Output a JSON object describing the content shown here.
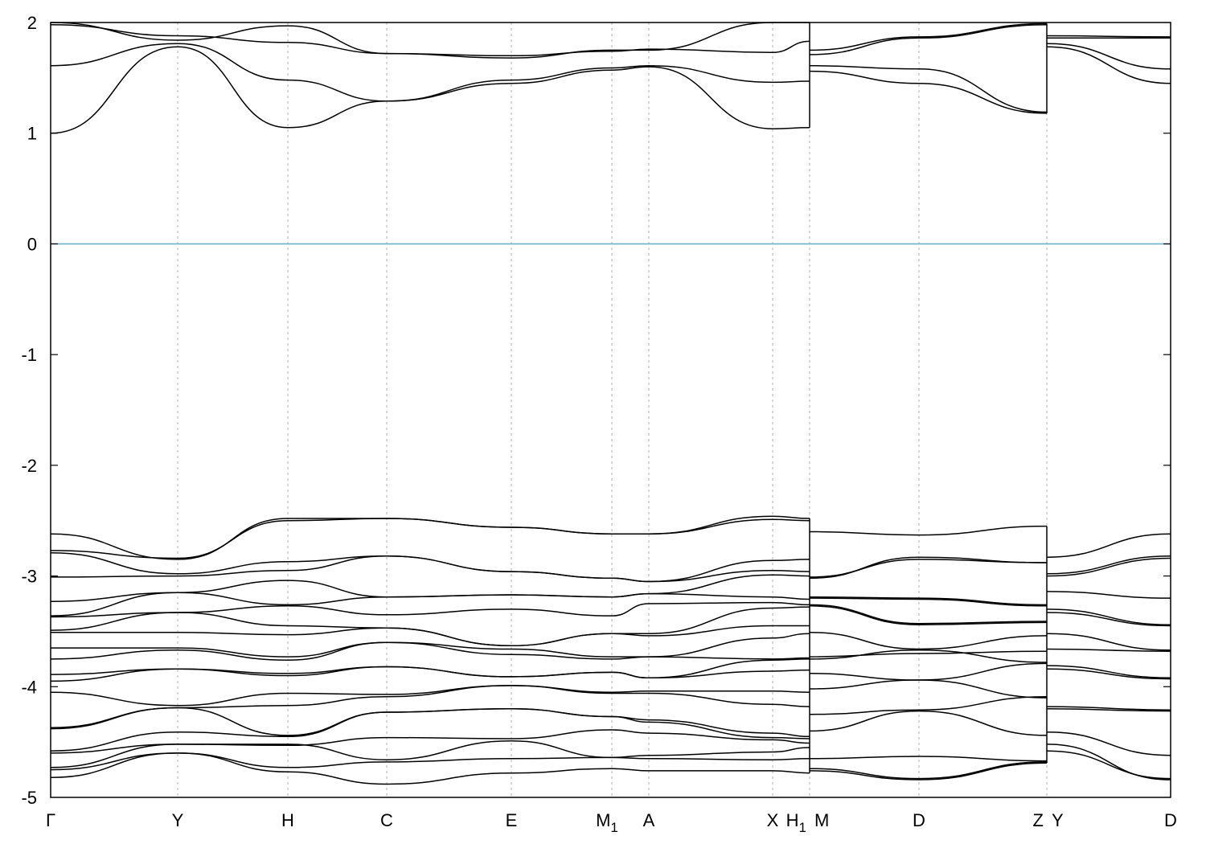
{
  "chart_data": {
    "type": "line",
    "title": "",
    "xlabel": "",
    "ylabel": "",
    "ylim": [
      -5,
      2
    ],
    "yticks": [
      {
        "value": 2,
        "label": "2"
      },
      {
        "value": 1,
        "label": "1"
      },
      {
        "value": 0,
        "label": "0"
      },
      {
        "value": -1,
        "label": "-1"
      },
      {
        "value": -2,
        "label": "-2"
      },
      {
        "value": -3,
        "label": "-3"
      },
      {
        "value": -4,
        "label": "-4"
      },
      {
        "value": -5,
        "label": "-5"
      }
    ],
    "kpoints": [
      {
        "label": "Γ",
        "sub": "",
        "x": 0
      },
      {
        "label": "Y",
        "sub": "",
        "x": 158
      },
      {
        "label": "H",
        "sub": "",
        "x": 295
      },
      {
        "label": "C",
        "sub": "",
        "x": 418
      },
      {
        "label": "E",
        "sub": "",
        "x": 573
      },
      {
        "label": "M",
        "sub": "1",
        "x": 698
      },
      {
        "label": "A",
        "sub": "",
        "x": 744
      },
      {
        "label": "X",
        "sub": "",
        "x": 898
      },
      {
        "label": "H",
        "sub": "1",
        "x": 944
      },
      {
        "label": "M",
        "sub": "",
        "x": 944
      },
      {
        "label": "D",
        "sub": "",
        "x": 1080
      },
      {
        "label": "Z",
        "sub": "",
        "x": 1239
      },
      {
        "label": "Y",
        "sub": "",
        "x": 1239
      },
      {
        "label": "D",
        "sub": "",
        "x": 1393
      }
    ],
    "xlim": [
      0,
      1393
    ],
    "fermi_level": 0,
    "fermi_color": "#6ab4c8",
    "band_color": "#000000",
    "segments": [
      {
        "kx": [
          0,
          158,
          295,
          418,
          573,
          698,
          744,
          898,
          944
        ],
        "bands": [
          [
            1.0,
            1.78,
            1.05,
            1.29,
            1.45,
            1.57,
            1.6,
            1.04,
            1.05
          ],
          [
            1.61,
            1.81,
            1.48,
            1.29,
            1.48,
            1.59,
            1.61,
            1.46,
            1.47
          ],
          [
            1.98,
            1.88,
            1.82,
            1.72,
            1.7,
            1.74,
            1.76,
            1.73,
            1.83
          ],
          [
            2.0,
            1.84,
            1.97,
            1.72,
            1.68,
            1.75,
            1.75,
            2.0,
            2.0
          ],
          [
            -2.62,
            -2.85,
            -2.48,
            -2.48,
            -2.56,
            -2.62,
            -2.62,
            -2.46,
            -2.48
          ],
          [
            -2.77,
            -2.84,
            -2.5,
            -2.48,
            -2.56,
            -2.62,
            -2.62,
            -2.49,
            -2.5
          ],
          [
            -2.79,
            -2.98,
            -2.87,
            -2.82,
            -2.96,
            -3.02,
            -3.05,
            -2.86,
            -2.85
          ],
          [
            -3.01,
            -3.0,
            -2.95,
            -2.82,
            -2.96,
            -3.02,
            -3.05,
            -2.95,
            -2.96
          ],
          [
            -3.23,
            -3.15,
            -3.04,
            -3.19,
            -3.17,
            -3.19,
            -3.16,
            -2.99,
            -3.0
          ],
          [
            -3.36,
            -3.15,
            -3.26,
            -3.19,
            -3.17,
            -3.19,
            -3.16,
            -3.19,
            -3.21
          ],
          [
            -3.37,
            -3.33,
            -3.27,
            -3.35,
            -3.3,
            -3.36,
            -3.25,
            -3.24,
            -3.26
          ],
          [
            -3.49,
            -3.33,
            -3.45,
            -3.47,
            -3.63,
            -3.52,
            -3.52,
            -3.29,
            -3.28
          ],
          [
            -3.51,
            -3.51,
            -3.53,
            -3.47,
            -3.63,
            -3.52,
            -3.54,
            -3.45,
            -3.45
          ],
          [
            -3.65,
            -3.65,
            -3.73,
            -3.6,
            -3.66,
            -3.73,
            -3.73,
            -3.56,
            -3.52
          ],
          [
            -3.75,
            -3.67,
            -3.76,
            -3.6,
            -3.71,
            -3.75,
            -3.73,
            -3.75,
            -3.74
          ],
          [
            -3.89,
            -3.84,
            -3.88,
            -3.82,
            -3.91,
            -3.87,
            -3.92,
            -3.76,
            -3.75
          ],
          [
            -3.95,
            -3.84,
            -3.9,
            -3.82,
            -3.91,
            -3.87,
            -3.92,
            -3.86,
            -3.85
          ],
          [
            -4.05,
            -4.17,
            -4.06,
            -4.07,
            -3.99,
            -4.05,
            -4.04,
            -4.04,
            -4.05
          ],
          [
            -4.38,
            -4.19,
            -4.17,
            -4.09,
            -3.99,
            -4.06,
            -4.06,
            -4.16,
            -4.18
          ],
          [
            -4.37,
            -4.19,
            -4.44,
            -4.23,
            -4.2,
            -4.27,
            -4.3,
            -4.42,
            -4.45
          ],
          [
            -4.58,
            -4.41,
            -4.45,
            -4.23,
            -4.2,
            -4.27,
            -4.32,
            -4.46,
            -4.47
          ],
          [
            -4.6,
            -4.52,
            -4.53,
            -4.46,
            -4.47,
            -4.39,
            -4.42,
            -4.48,
            -4.51
          ],
          [
            -4.73,
            -4.52,
            -4.52,
            -4.66,
            -4.49,
            -4.64,
            -4.62,
            -4.59,
            -4.55
          ],
          [
            -4.75,
            -4.6,
            -4.73,
            -4.68,
            -4.65,
            -4.64,
            -4.65,
            -4.66,
            -4.65
          ],
          [
            -4.82,
            -4.6,
            -4.77,
            -4.88,
            -4.78,
            -4.74,
            -4.76,
            -4.76,
            -4.78
          ]
        ]
      },
      {
        "kx": [
          944,
          1080,
          1239
        ],
        "bands": [
          [
            1.56,
            1.45,
            1.18
          ],
          [
            1.61,
            1.58,
            1.19
          ],
          [
            1.71,
            1.86,
            1.98
          ],
          [
            1.75,
            1.87,
            1.99
          ],
          [
            -2.6,
            -2.63,
            -2.55
          ],
          [
            -3.02,
            -2.83,
            -2.88
          ],
          [
            -3.01,
            -2.85,
            -2.88
          ],
          [
            -3.19,
            -3.2,
            -3.26
          ],
          [
            -3.2,
            -3.21,
            -3.27
          ],
          [
            -3.26,
            -3.43,
            -3.41
          ],
          [
            -3.27,
            -3.44,
            -3.42
          ],
          [
            -3.51,
            -3.66,
            -3.54
          ],
          [
            -3.73,
            -3.7,
            -3.68
          ],
          [
            -3.75,
            -3.67,
            -3.78
          ],
          [
            -3.88,
            -3.94,
            -3.79
          ],
          [
            -4.02,
            -3.94,
            -4.1
          ],
          [
            -4.25,
            -4.21,
            -4.09
          ],
          [
            -4.4,
            -4.22,
            -4.44
          ],
          [
            -4.65,
            -4.63,
            -4.67
          ],
          [
            -4.74,
            -4.83,
            -4.68
          ],
          [
            -4.76,
            -4.84,
            -4.69
          ]
        ]
      },
      {
        "kx": [
          1239,
          1393
        ],
        "bands": [
          [
            1.78,
            1.45
          ],
          [
            1.81,
            1.58
          ],
          [
            1.86,
            1.86
          ],
          [
            1.88,
            1.87
          ],
          [
            -2.83,
            -2.62
          ],
          [
            -2.98,
            -2.82
          ],
          [
            -3.0,
            -2.84
          ],
          [
            -3.14,
            -3.2
          ],
          [
            -3.3,
            -3.44
          ],
          [
            -3.33,
            -3.45
          ],
          [
            -3.52,
            -3.67
          ],
          [
            -3.66,
            -3.68
          ],
          [
            -3.81,
            -3.92
          ],
          [
            -3.84,
            -3.93
          ],
          [
            -4.18,
            -4.21
          ],
          [
            -4.2,
            -4.22
          ],
          [
            -4.41,
            -4.62
          ],
          [
            -4.52,
            -4.84
          ],
          [
            -4.58,
            -4.83
          ]
        ]
      }
    ]
  }
}
